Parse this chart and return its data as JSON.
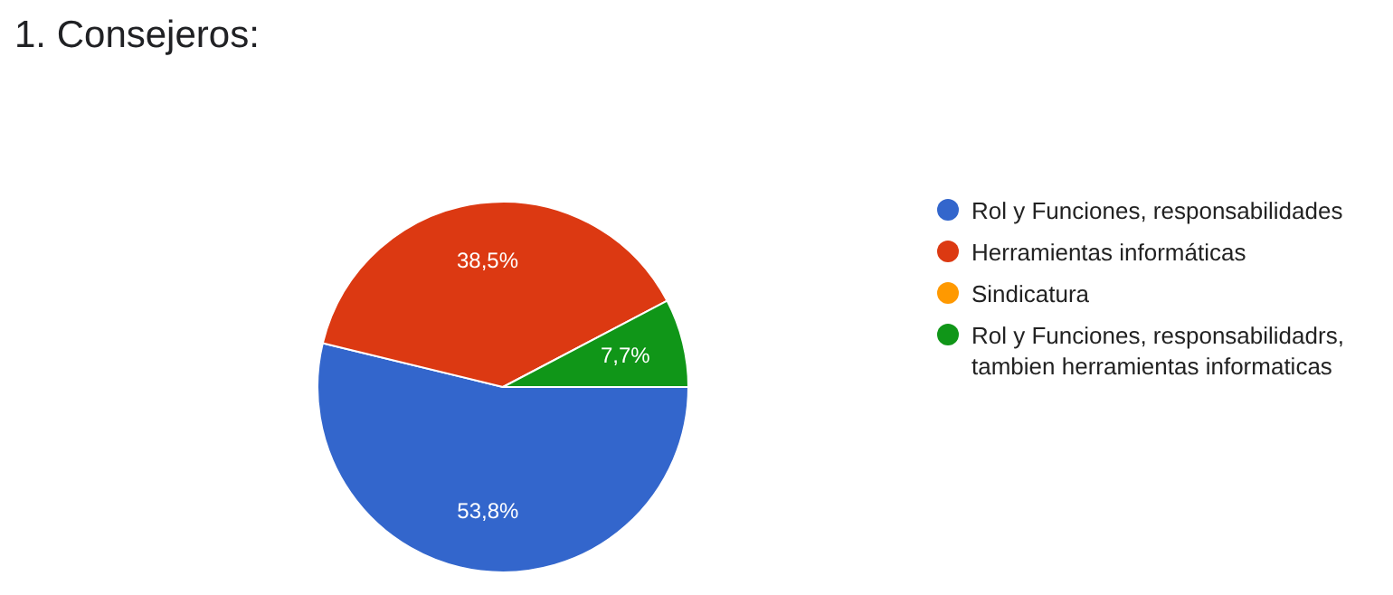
{
  "chart_data": {
    "type": "pie",
    "title": "1. Consejeros:",
    "categories": [
      "Rol y Funciones, responsabilidades",
      "Herramientas informáticas",
      "Sindicatura",
      "Rol y Funciones, responsabilidadrs, tambien herramientas informaticas"
    ],
    "values": [
      53.8,
      38.5,
      0,
      7.7
    ],
    "colors": [
      "#3366cc",
      "#dc3912",
      "#ff9900",
      "#109618"
    ],
    "value_labels": [
      "53,8%",
      "38,5%",
      null,
      "7,7%"
    ],
    "legend": "right"
  }
}
